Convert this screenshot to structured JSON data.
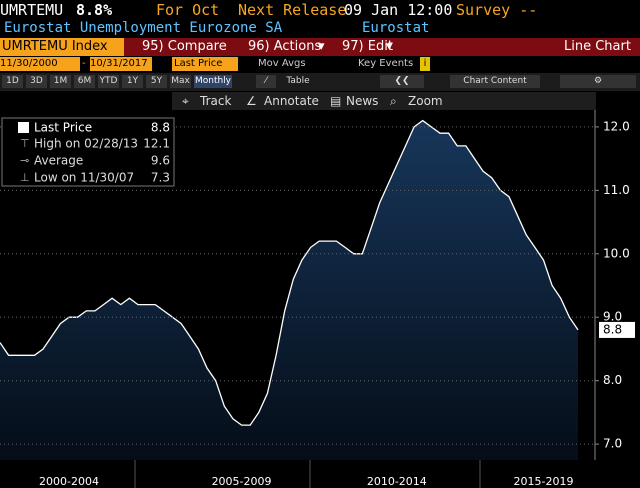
{
  "header": {
    "ticker": "UMRTEMU",
    "price": "8.8%",
    "period": "For Oct",
    "next_release_label": "Next Release",
    "next_release": "09 Jan 12:00",
    "survey": "Survey --",
    "description": "Eurostat Unemployment Eurozone SA",
    "source": "Eurostat"
  },
  "toolbar": {
    "security": "UMRTEMU Index",
    "menu": [
      "95) Compare",
      "96) Actions",
      "97) Edit"
    ],
    "view": "Line Chart",
    "start_date": "11/30/2000",
    "end_date": "10/31/2017",
    "field": "Last Price",
    "mov_avgs": "Mov Avgs",
    "key_events": "Key Events",
    "ranges": [
      "1D",
      "3D",
      "1M",
      "6M",
      "YTD",
      "1Y",
      "5Y",
      "Max"
    ],
    "frequency": "Monthly",
    "table": "Table",
    "chart_content": "Chart Content",
    "tools": [
      "Track",
      "Annotate",
      "News",
      "Zoom"
    ]
  },
  "chart_data": {
    "type": "area",
    "categories": [
      null,
      null,
      null,
      null,
      null,
      null,
      null,
      null,
      "2000-2004",
      null,
      null,
      null,
      null,
      null,
      null,
      null,
      null,
      null,
      null,
      null,
      null,
      null,
      null,
      null,
      null,
      null,
      null,
      null,
      "2005-2009",
      null,
      null,
      null,
      null,
      null,
      null,
      null,
      null,
      null,
      null,
      null,
      null,
      null,
      null,
      null,
      null,
      null,
      "2010-2014",
      null,
      null,
      null,
      null,
      null,
      null,
      null,
      null,
      null,
      null,
      null,
      null,
      null,
      null,
      null,
      null,
      "2015-2019",
      null,
      null,
      null,
      null
    ],
    "series": [
      {
        "name": "Last Price",
        "color": "#ffffff",
        "fill": "#17365a",
        "values": [
          8.6,
          8.4,
          8.4,
          8.4,
          8.4,
          8.5,
          8.7,
          8.9,
          9.0,
          9.0,
          9.1,
          9.1,
          9.2,
          9.3,
          9.2,
          9.3,
          9.2,
          9.2,
          9.2,
          9.1,
          9.0,
          8.9,
          8.7,
          8.5,
          8.2,
          8.0,
          7.6,
          7.4,
          7.3,
          7.3,
          7.5,
          7.8,
          8.4,
          9.1,
          9.6,
          9.9,
          10.1,
          10.2,
          10.2,
          10.2,
          10.1,
          10.0,
          10.0,
          10.4,
          10.8,
          11.1,
          11.4,
          11.7,
          12.0,
          12.1,
          12.0,
          11.9,
          11.9,
          11.7,
          11.7,
          11.5,
          11.3,
          11.2,
          11.0,
          10.9,
          10.6,
          10.3,
          10.1,
          9.9,
          9.5,
          9.3,
          9.0,
          8.8
        ]
      }
    ],
    "ylim": [
      6.75,
      12.55
    ],
    "yticks": [
      {
        "value": 7,
        "label": "7.0"
      },
      {
        "value": 8,
        "label": "8.0"
      },
      {
        "value": 9,
        "label": "9.0"
      },
      {
        "value": 10,
        "label": "10.0"
      },
      {
        "value": 11,
        "label": "11.0"
      },
      {
        "value": 12,
        "label": "12.0"
      }
    ],
    "grid": true,
    "axis_side": "right",
    "legend": {
      "corner": "top-left",
      "last_value": 8.8,
      "stats": [
        {
          "label": "High on 02/28/13",
          "value": 12.1
        },
        {
          "label": "Average",
          "value": 9.6
        },
        {
          "label": "Low on 11/30/07",
          "value": 7.3
        }
      ]
    }
  }
}
